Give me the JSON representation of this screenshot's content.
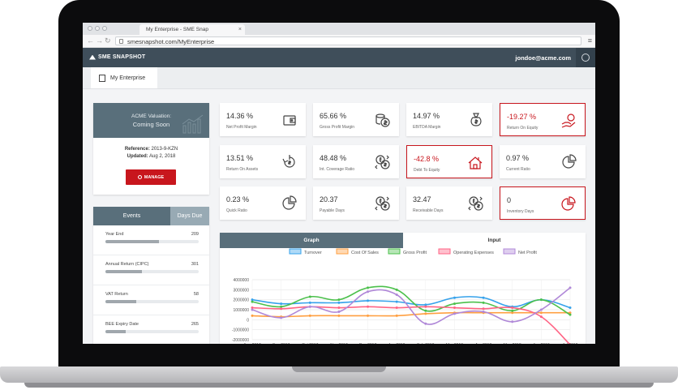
{
  "browser": {
    "tab_title": "My Enterprise - SME Snap",
    "tab_close": "×",
    "url": "smesnapshot.com/MyEnterprise",
    "back": "←",
    "forward": "→",
    "reload": "↻",
    "menu": "≡"
  },
  "header": {
    "logo_text": "SME SNAPSHOT",
    "user_email": "jondoe@acme.com",
    "user_icon": "user-settings-icon"
  },
  "subnav": {
    "tab_label": "My Enterprise",
    "tab_icon": "building-icon"
  },
  "valuation": {
    "title": "ACME Valuation:",
    "status": "Coming Soon",
    "reference_label": "Reference:",
    "reference_value": "2013-9-KZN",
    "updated_label": "Updated:",
    "updated_value": "Aug 2, 2018",
    "manage_label": "MANAGE"
  },
  "events": {
    "tab_events": "Events",
    "tab_days_due": "Days Due",
    "items": [
      {
        "name": "Year End",
        "days": "209",
        "progress": 0.57
      },
      {
        "name": "Annual Return (CIPC)",
        "days": "301",
        "progress": 0.39
      },
      {
        "name": "VAT Return",
        "days": "58",
        "progress": 0.33
      },
      {
        "name": "BEE Expiry Date",
        "days": "265",
        "progress": 0.22
      }
    ]
  },
  "kpis": [
    {
      "value": "14.36 %",
      "label": "Net Profit Margin",
      "negative": false,
      "icon": "wallet-icon"
    },
    {
      "value": "65.66 %",
      "label": "Gross Profit Margin",
      "negative": false,
      "icon": "coins-icon"
    },
    {
      "value": "14.97 %",
      "label": "EBITDA Margin",
      "negative": false,
      "icon": "money-bag-icon"
    },
    {
      "value": "-19.27 %",
      "label": "Return On Equity",
      "negative": true,
      "icon": "hand-coin-icon"
    },
    {
      "value": "13.51 %",
      "label": "Return On Assets",
      "negative": false,
      "icon": "refund-icon"
    },
    {
      "value": "48.48 %",
      "label": "Int. Coverage Ratio",
      "negative": false,
      "icon": "currency-exchange-icon"
    },
    {
      "value": "-42.8 %",
      "label": "Debt To Equity",
      "negative": true,
      "icon": "house-icon"
    },
    {
      "value": "0.97 %",
      "label": "Current Ratio",
      "negative": false,
      "icon": "pie-chart-icon"
    },
    {
      "value": "0.23 %",
      "label": "Quick Ratio",
      "negative": false,
      "icon": "pie-chart-icon"
    },
    {
      "value": "20.37",
      "label": "Payable Days",
      "negative": false,
      "icon": "currency-exchange-icon"
    },
    {
      "value": "32.47",
      "label": "Receivable Days",
      "negative": false,
      "icon": "currency-exchange-icon"
    },
    {
      "value": "0",
      "label": "Inventory Days",
      "negative": true,
      "icon": "pie-chart-icon"
    }
  ],
  "chart_tabs": {
    "graph": "Graph",
    "input": "Input"
  },
  "colors": {
    "header": "#3f4e5a",
    "accent": "#596f7b",
    "danger": "#c8161d"
  },
  "chart_data": {
    "type": "line",
    "categories": [
      "Aug 2017",
      "Sep 2017",
      "Oct 2017",
      "Nov 2017",
      "Dec 2017",
      "Jan 2018",
      "Feb 2018",
      "Mar 2018",
      "Apr 2018",
      "May 2018",
      "Jun 2018",
      "Jul 2018"
    ],
    "ylim": [
      -2000000,
      4000000
    ],
    "yticks": [
      4000000,
      3000000,
      2000000,
      1000000,
      0,
      -1000000,
      -2000000
    ],
    "legend_position": "top",
    "series": [
      {
        "name": "Turnover",
        "color": "#36a2eb",
        "values": [
          2000000,
          1600000,
          1700000,
          1700000,
          1900000,
          1800000,
          1500000,
          2200000,
          2200000,
          1300000,
          2000000,
          1200000
        ]
      },
      {
        "name": "Cost Of Sales",
        "color": "#ff9f40",
        "values": [
          400000,
          300000,
          400000,
          400000,
          400000,
          400000,
          600000,
          700000,
          700000,
          700000,
          700000,
          700000
        ]
      },
      {
        "name": "Gross Profit",
        "color": "#4bc04b",
        "values": [
          1800000,
          1300000,
          2300000,
          2000000,
          3200000,
          3000000,
          900000,
          1600000,
          1700000,
          900000,
          2000000,
          500000
        ]
      },
      {
        "name": "Operating Expenses",
        "color": "#ff6384",
        "values": [
          1200000,
          1100000,
          1300000,
          1200000,
          1300000,
          1200000,
          1300000,
          1200000,
          1100000,
          1200000,
          300000,
          -2500000
        ]
      },
      {
        "name": "Net Profit",
        "color": "#b088d8",
        "values": [
          1000000,
          200000,
          1300000,
          800000,
          2800000,
          2500000,
          -400000,
          600000,
          800000,
          -200000,
          1000000,
          3200000
        ]
      }
    ]
  }
}
